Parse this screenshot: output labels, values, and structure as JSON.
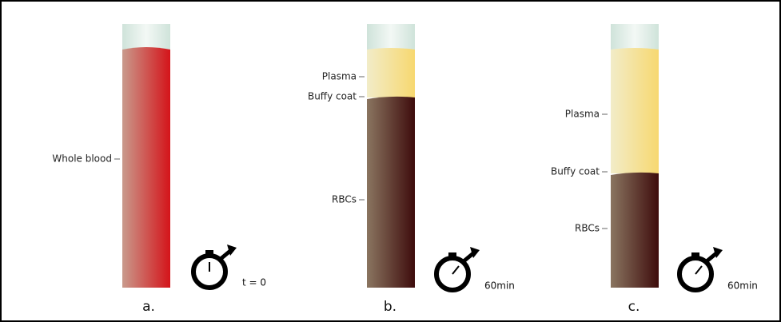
{
  "panels": [
    {
      "caption": "a.",
      "timer": "t = 0",
      "labels": [
        "Whole blood"
      ]
    },
    {
      "caption": "b.",
      "timer": "60min",
      "labels": [
        "Plasma",
        "Buffy coat",
        "RBCs"
      ]
    },
    {
      "caption": "c.",
      "timer": "60min",
      "labels": [
        "Plasma",
        "Buffy coat",
        "RBCs"
      ]
    }
  ]
}
